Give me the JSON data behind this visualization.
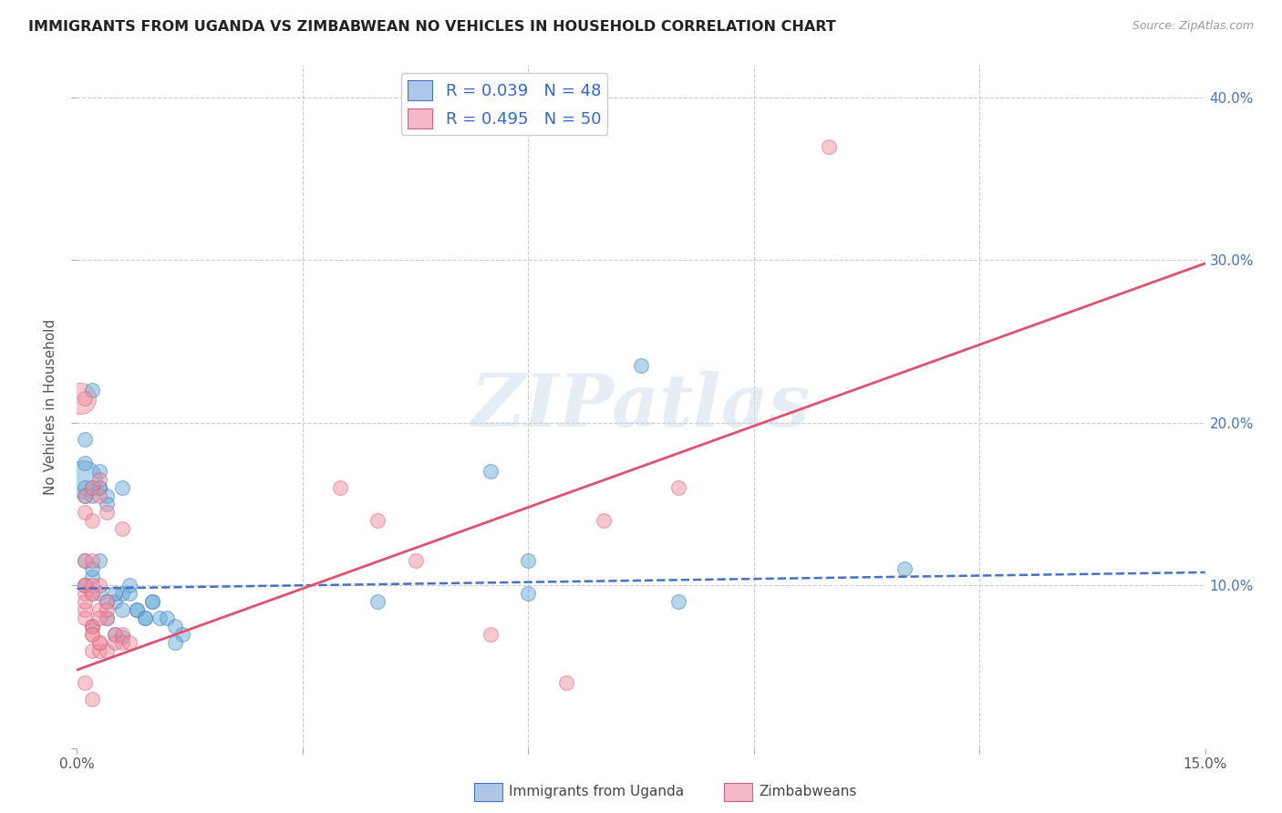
{
  "title": "IMMIGRANTS FROM UGANDA VS ZIMBABWEAN NO VEHICLES IN HOUSEHOLD CORRELATION CHART",
  "source": "Source: ZipAtlas.com",
  "ylabel": "No Vehicles in Household",
  "xlim": [
    0.0,
    0.15
  ],
  "ylim": [
    0.0,
    0.42
  ],
  "xticks": [
    0.0,
    0.03,
    0.06,
    0.09,
    0.12,
    0.15
  ],
  "xticklabels": [
    "0.0%",
    "",
    "",
    "",
    "",
    "15.0%"
  ],
  "yticks": [
    0.0,
    0.1,
    0.2,
    0.3,
    0.4
  ],
  "yticklabels_right": [
    "",
    "10.0%",
    "20.0%",
    "30.0%",
    "40.0%"
  ],
  "legend_label1": "R = 0.039   N = 48",
  "legend_label2": "R = 0.495   N = 50",
  "legend_color1": "#aec6e8",
  "legend_color2": "#f4b8c8",
  "series1_color": "#6aaed6",
  "series2_color": "#f090a0",
  "trend1_color": "#4472c4",
  "trend2_color": "#e05070",
  "watermark": "ZIPatlas",
  "background": "#ffffff",
  "grid_color": "#cccccc",
  "blue_x": [
    0.001,
    0.001,
    0.002,
    0.003,
    0.004,
    0.005,
    0.006,
    0.006,
    0.007,
    0.008,
    0.009,
    0.01,
    0.011,
    0.012,
    0.013,
    0.014,
    0.001,
    0.002,
    0.003,
    0.005,
    0.001,
    0.002,
    0.003,
    0.004,
    0.006,
    0.007,
    0.008,
    0.009,
    0.01,
    0.013,
    0.001,
    0.002,
    0.003,
    0.004,
    0.002,
    0.004,
    0.005,
    0.006,
    0.04,
    0.055,
    0.06,
    0.06,
    0.075,
    0.08,
    0.11,
    0.001,
    0.002,
    0.003
  ],
  "blue_y": [
    0.175,
    0.19,
    0.22,
    0.17,
    0.155,
    0.09,
    0.095,
    0.085,
    0.1,
    0.085,
    0.08,
    0.09,
    0.08,
    0.08,
    0.075,
    0.07,
    0.1,
    0.105,
    0.115,
    0.095,
    0.16,
    0.155,
    0.16,
    0.15,
    0.16,
    0.095,
    0.085,
    0.08,
    0.09,
    0.065,
    0.115,
    0.11,
    0.095,
    0.09,
    0.075,
    0.08,
    0.07,
    0.068,
    0.09,
    0.17,
    0.115,
    0.095,
    0.235,
    0.09,
    0.11,
    0.155,
    0.16,
    0.16
  ],
  "blue_s_large": [
    2
  ],
  "blue_large_idx": [
    20
  ],
  "pink_x": [
    0.001,
    0.001,
    0.001,
    0.001,
    0.002,
    0.002,
    0.002,
    0.002,
    0.002,
    0.003,
    0.003,
    0.003,
    0.003,
    0.004,
    0.004,
    0.004,
    0.005,
    0.005,
    0.006,
    0.006,
    0.006,
    0.007,
    0.001,
    0.001,
    0.002,
    0.002,
    0.003,
    0.003,
    0.004,
    0.004,
    0.001,
    0.001,
    0.002,
    0.002,
    0.003,
    0.003,
    0.001,
    0.002,
    0.001,
    0.002,
    0.035,
    0.04,
    0.045,
    0.055,
    0.065,
    0.07,
    0.08,
    0.1,
    0.001,
    0.002
  ],
  "pink_y": [
    0.1,
    0.115,
    0.095,
    0.085,
    0.115,
    0.095,
    0.075,
    0.07,
    0.06,
    0.1,
    0.085,
    0.065,
    0.06,
    0.09,
    0.08,
    0.06,
    0.07,
    0.065,
    0.07,
    0.065,
    0.135,
    0.065,
    0.155,
    0.145,
    0.16,
    0.14,
    0.165,
    0.155,
    0.145,
    0.085,
    0.1,
    0.09,
    0.1,
    0.075,
    0.08,
    0.065,
    0.04,
    0.03,
    0.08,
    0.07,
    0.16,
    0.14,
    0.115,
    0.07,
    0.04,
    0.14,
    0.16,
    0.37,
    0.215,
    0.095
  ],
  "trend1_x": [
    0.0,
    0.15
  ],
  "trend1_y": [
    0.098,
    0.108
  ],
  "trend2_x": [
    0.0,
    0.15
  ],
  "trend2_y": [
    0.048,
    0.298
  ],
  "bottom_label1": "Immigrants from Uganda",
  "bottom_label2": "Zimbabweans",
  "bottom_color1": "#aec6e8",
  "bottom_color2": "#f4b8c8",
  "bottom_edge1": "#4472c4",
  "bottom_edge2": "#d06080"
}
